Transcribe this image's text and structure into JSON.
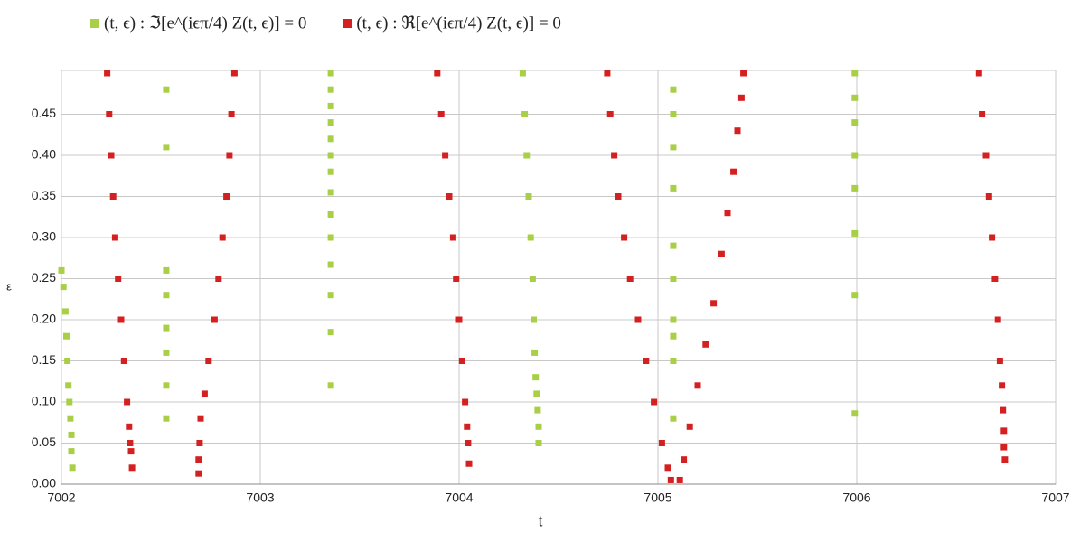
{
  "chart_data": {
    "type": "scatter",
    "x_label": "t",
    "y_label": "ε",
    "xlim": [
      7002,
      7007
    ],
    "ylim": [
      0,
      0.5
    ],
    "xticks": [
      7002,
      7003,
      7004,
      7005,
      7006,
      7007
    ],
    "yticks": [
      {
        "value": 0,
        "label": "0.00"
      },
      {
        "value": 0.05,
        "label": "0.05"
      },
      {
        "value": 0.1,
        "label": "0.10"
      },
      {
        "value": 0.15,
        "label": "0.15"
      },
      {
        "value": 0.2,
        "label": "0.20"
      },
      {
        "value": 0.25,
        "label": "0.25"
      },
      {
        "value": 0.3,
        "label": "0.30"
      },
      {
        "value": 0.35,
        "label": "0.35"
      },
      {
        "value": 0.4,
        "label": "0.40"
      },
      {
        "value": 0.45,
        "label": "0.45"
      }
    ],
    "grid": true,
    "legend": "top-left",
    "series": [
      {
        "name": "(t, ϵ) : ℑ[e^(iϵπ/4) Z(t, ϵ)] = 0",
        "color": "#a8cf45",
        "x": [
          7002.0,
          7002.01,
          7002.02,
          7002.025,
          7002.03,
          7002.035,
          7002.04,
          7002.045,
          7002.05,
          7002.05,
          7002.055,
          7002.527,
          7002.527,
          7002.527,
          7002.527,
          7002.527,
          7002.527,
          7002.527,
          7002.527,
          7003.355,
          7003.355,
          7003.355,
          7003.355,
          7003.355,
          7003.355,
          7003.355,
          7003.355,
          7003.355,
          7003.355,
          7003.355,
          7003.355,
          7003.355,
          7003.355,
          7004.32,
          7004.33,
          7004.34,
          7004.35,
          7004.36,
          7004.37,
          7004.375,
          7004.38,
          7004.385,
          7004.39,
          7004.395,
          7004.4,
          7004.4,
          7005.077,
          7005.077,
          7005.077,
          7005.077,
          7005.077,
          7005.077,
          7005.077,
          7005.077,
          7005.077,
          7005.077,
          7005.99,
          7005.99,
          7005.99,
          7005.99,
          7005.99,
          7005.99,
          7005.99,
          7005.99
        ],
        "values": [
          0.26,
          0.24,
          0.21,
          0.18,
          0.15,
          0.12,
          0.1,
          0.08,
          0.06,
          0.04,
          0.02,
          0.48,
          0.41,
          0.26,
          0.23,
          0.19,
          0.16,
          0.12,
          0.08,
          0.5,
          0.48,
          0.46,
          0.44,
          0.42,
          0.4,
          0.38,
          0.355,
          0.328,
          0.3,
          0.267,
          0.23,
          0.185,
          0.12,
          0.5,
          0.45,
          0.4,
          0.35,
          0.3,
          0.25,
          0.2,
          0.16,
          0.13,
          0.11,
          0.09,
          0.07,
          0.05,
          0.48,
          0.45,
          0.41,
          0.36,
          0.29,
          0.25,
          0.2,
          0.18,
          0.15,
          0.08,
          0.5,
          0.47,
          0.44,
          0.4,
          0.36,
          0.305,
          0.23,
          0.086
        ]
      },
      {
        "name": "(t, ϵ) : ℜ[e^(iϵπ/4) Z(t, ϵ)] = 0",
        "color": "#d42020",
        "x": [
          7002.23,
          7002.24,
          7002.25,
          7002.26,
          7002.27,
          7002.285,
          7002.3,
          7002.315,
          7002.33,
          7002.34,
          7002.345,
          7002.35,
          7002.355,
          7002.69,
          7002.69,
          7002.695,
          7002.7,
          7002.72,
          7002.74,
          7002.77,
          7002.79,
          7002.81,
          7002.83,
          7002.845,
          7002.855,
          7002.87,
          7003.89,
          7003.91,
          7003.93,
          7003.95,
          7003.97,
          7003.985,
          7004.0,
          7004.015,
          7004.03,
          7004.04,
          7004.045,
          7004.05,
          7004.745,
          7004.76,
          7004.78,
          7004.8,
          7004.83,
          7004.86,
          7004.9,
          7004.94,
          7004.98,
          7005.02,
          7005.05,
          7005.065,
          7005.11,
          7005.13,
          7005.16,
          7005.2,
          7005.24,
          7005.28,
          7005.32,
          7005.35,
          7005.38,
          7005.4,
          7005.42,
          7005.43,
          7006.615,
          7006.63,
          7006.65,
          7006.665,
          7006.68,
          7006.695,
          7006.71,
          7006.72,
          7006.73,
          7006.735,
          7006.74,
          7006.74,
          7006.745
        ],
        "values": [
          0.5,
          0.45,
          0.4,
          0.35,
          0.3,
          0.25,
          0.2,
          0.15,
          0.1,
          0.07,
          0.05,
          0.04,
          0.02,
          0.013,
          0.03,
          0.05,
          0.08,
          0.11,
          0.15,
          0.2,
          0.25,
          0.3,
          0.35,
          0.4,
          0.45,
          0.5,
          0.5,
          0.45,
          0.4,
          0.35,
          0.3,
          0.25,
          0.2,
          0.15,
          0.1,
          0.07,
          0.05,
          0.025,
          0.5,
          0.45,
          0.4,
          0.35,
          0.3,
          0.25,
          0.2,
          0.15,
          0.1,
          0.05,
          0.02,
          0.005,
          0.005,
          0.03,
          0.07,
          0.12,
          0.17,
          0.22,
          0.28,
          0.33,
          0.38,
          0.43,
          0.47,
          0.5,
          0.5,
          0.45,
          0.4,
          0.35,
          0.3,
          0.25,
          0.2,
          0.15,
          0.12,
          0.09,
          0.065,
          0.045,
          0.03
        ]
      }
    ]
  }
}
